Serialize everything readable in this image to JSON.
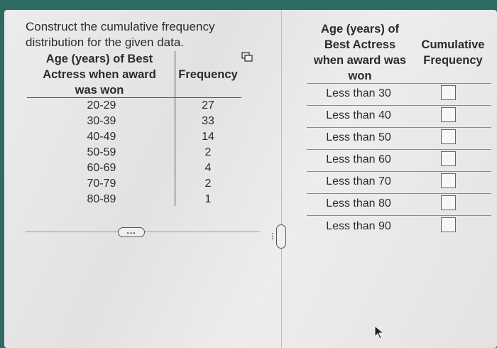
{
  "prompt": {
    "line1": "Construct the cumulative frequency",
    "line2": "distribution for the given data."
  },
  "left_table": {
    "col1_header": [
      "Age (years) of Best",
      "Actress when award",
      "was won"
    ],
    "col2_header": "Frequency",
    "classes": [
      "20-29",
      "30-39",
      "40-49",
      "50-59",
      "60-69",
      "70-79",
      "80-89"
    ],
    "frequencies": [
      "27",
      "33",
      "14",
      "2",
      "4",
      "2",
      "1"
    ]
  },
  "expand_dots": "...",
  "right_table": {
    "col1_header": [
      "Age (years) of",
      "Best Actress",
      "when award was",
      "won"
    ],
    "col2_header": [
      "Cumulative",
      "Frequency"
    ],
    "rows": [
      "Less than 30",
      "Less than 40",
      "Less than 50",
      "Less than 60",
      "Less than 70",
      "Less than 80",
      "Less than 90"
    ],
    "inputs": [
      "",
      "",
      "",
      "",
      "",
      "",
      ""
    ]
  },
  "icons": {
    "copy": "copy-icon",
    "cursor": "mouse-pointer-icon"
  }
}
